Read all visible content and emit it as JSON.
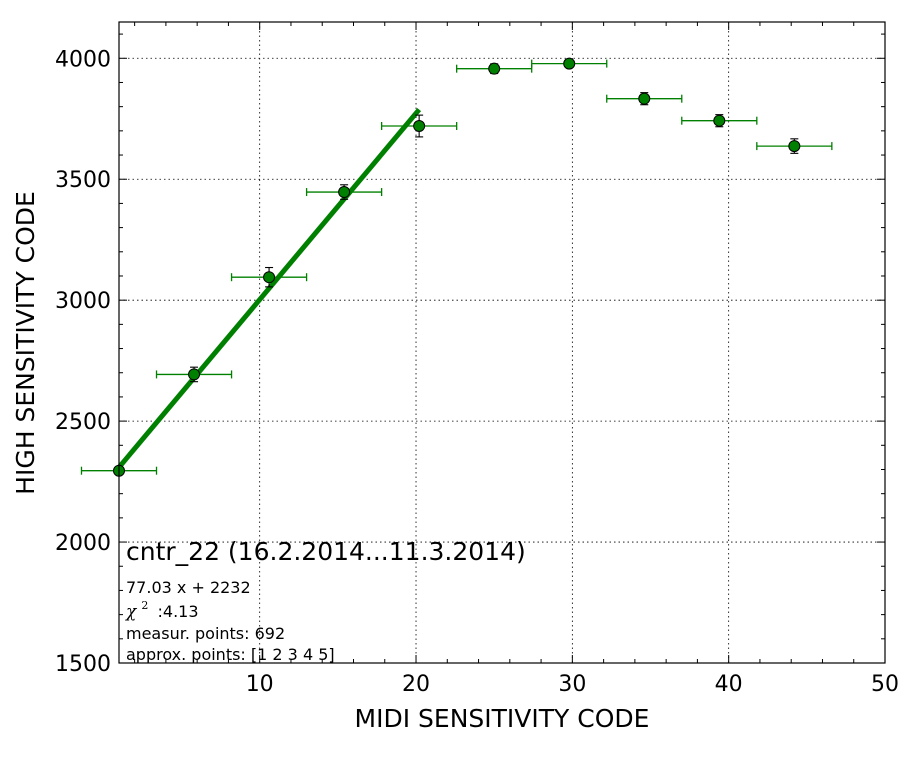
{
  "chart_data": {
    "type": "scatter",
    "title": "",
    "xlabel": "MIDI SENSITIVITY CODE",
    "ylabel": "HIGH SENSITIVITY CODE",
    "xlim": [
      1,
      50
    ],
    "ylim": [
      1500,
      4150
    ],
    "xticks": [
      10,
      20,
      30,
      40,
      50
    ],
    "yticks": [
      1500,
      2000,
      2500,
      3000,
      3500,
      4000
    ],
    "grid": true,
    "color": "#008000",
    "points": [
      {
        "x": 1.0,
        "y": 2295,
        "xerr": 2.4,
        "yerr": 15
      },
      {
        "x": 5.8,
        "y": 2693,
        "xerr": 2.4,
        "yerr": 30
      },
      {
        "x": 10.6,
        "y": 3095,
        "xerr": 2.4,
        "yerr": 40
      },
      {
        "x": 15.4,
        "y": 3447,
        "xerr": 2.4,
        "yerr": 30
      },
      {
        "x": 20.2,
        "y": 3720,
        "xerr": 2.4,
        "yerr": 45
      },
      {
        "x": 25.0,
        "y": 3957,
        "xerr": 2.4,
        "yerr": 20
      },
      {
        "x": 29.8,
        "y": 3978,
        "xerr": 2.4,
        "yerr": 15
      },
      {
        "x": 34.6,
        "y": 3833,
        "xerr": 2.4,
        "yerr": 25
      },
      {
        "x": 39.4,
        "y": 3742,
        "xerr": 2.4,
        "yerr": 25
      },
      {
        "x": 44.2,
        "y": 3637,
        "xerr": 2.4,
        "yerr": 30
      }
    ],
    "fit": {
      "slope": 77.03,
      "intercept": 2232,
      "x_range": [
        1,
        20.2
      ]
    },
    "annotation": {
      "title": "cntr_22 (16.2.2014...11.3.2014)",
      "equation": "77.03 x + 2232",
      "chi_symbol": "χ",
      "chi_exp": "2",
      "chi_value": ":4.13",
      "measur_points": "measur. points: 692",
      "approx_points": "approx. points: [1 2 3 4 5]"
    }
  }
}
